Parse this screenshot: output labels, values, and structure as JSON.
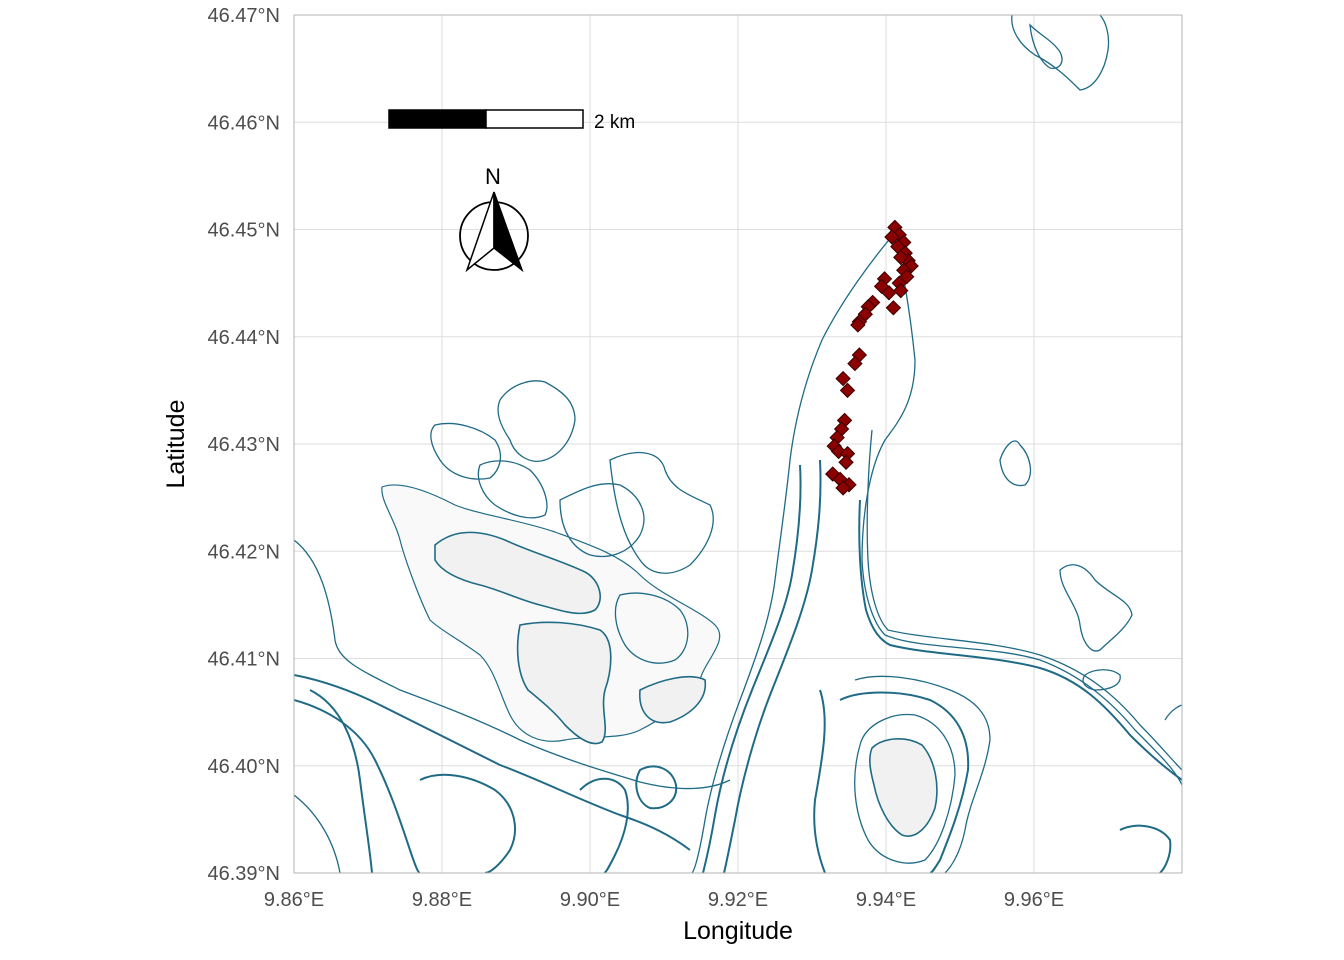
{
  "axes": {
    "x_title": "Longitude",
    "y_title": "Latitude",
    "x_ticks": [
      {
        "value": 9.86,
        "label": "9.86°E"
      },
      {
        "value": 9.88,
        "label": "9.88°E"
      },
      {
        "value": 9.9,
        "label": "9.90°E"
      },
      {
        "value": 9.92,
        "label": "9.92°E"
      },
      {
        "value": 9.94,
        "label": "9.94°E"
      },
      {
        "value": 9.96,
        "label": "9.96°E"
      }
    ],
    "y_ticks": [
      {
        "value": 46.39,
        "label": "46.39°N"
      },
      {
        "value": 46.4,
        "label": "46.40°N"
      },
      {
        "value": 46.41,
        "label": "46.41°N"
      },
      {
        "value": 46.42,
        "label": "46.42°N"
      },
      {
        "value": 46.43,
        "label": "46.43°N"
      },
      {
        "value": 46.44,
        "label": "46.44°N"
      },
      {
        "value": 46.45,
        "label": "46.45°N"
      },
      {
        "value": 46.46,
        "label": "46.46°N"
      },
      {
        "value": 46.47,
        "label": "46.47°N"
      }
    ],
    "xlim": [
      9.86,
      9.98
    ],
    "ylim": [
      46.39,
      46.47
    ]
  },
  "scale_bar": {
    "label": "2 km"
  },
  "north_arrow": {
    "label": "N"
  },
  "colors": {
    "points": "#8b0000",
    "contours": "#1f6b86",
    "glacier_fill": "#f1f1f1",
    "grid": "#dedede"
  },
  "points": [
    [
      9.9412,
      46.4502
    ],
    [
      9.9418,
      46.4495
    ],
    [
      9.9408,
      46.4493
    ],
    [
      9.9424,
      46.4488
    ],
    [
      9.9416,
      46.4484
    ],
    [
      9.9426,
      46.4478
    ],
    [
      9.943,
      46.4471
    ],
    [
      9.942,
      46.4474
    ],
    [
      9.9434,
      46.4466
    ],
    [
      9.9424,
      46.4462
    ],
    [
      9.9428,
      46.4456
    ],
    [
      9.9398,
      46.4454
    ],
    [
      9.9418,
      46.445
    ],
    [
      9.9394,
      46.4447
    ],
    [
      9.942,
      46.4443
    ],
    [
      9.9404,
      46.4441
    ],
    [
      9.9382,
      46.4432
    ],
    [
      9.9376,
      46.4428
    ],
    [
      9.941,
      46.4427
    ],
    [
      9.9372,
      46.4421
    ],
    [
      9.9364,
      46.4414
    ],
    [
      9.9362,
      46.4411
    ],
    [
      9.9364,
      46.4383
    ],
    [
      9.9358,
      46.4375
    ],
    [
      9.9342,
      46.4361
    ],
    [
      9.9348,
      46.435
    ],
    [
      9.9344,
      46.4322
    ],
    [
      9.934,
      46.4314
    ],
    [
      9.9334,
      46.4306
    ],
    [
      9.933,
      46.4298
    ],
    [
      9.9336,
      46.4293
    ],
    [
      9.9348,
      46.4291
    ],
    [
      9.9346,
      46.4283
    ],
    [
      9.9328,
      46.4272
    ],
    [
      9.9338,
      46.4267
    ],
    [
      9.935,
      46.4262
    ],
    [
      9.9342,
      46.4259
    ]
  ]
}
